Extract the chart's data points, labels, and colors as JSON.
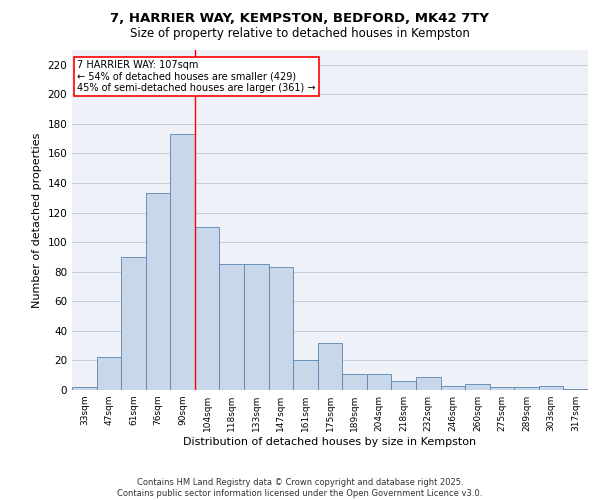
{
  "title1": "7, HARRIER WAY, KEMPSTON, BEDFORD, MK42 7TY",
  "title2": "Size of property relative to detached houses in Kempston",
  "xlabel": "Distribution of detached houses by size in Kempston",
  "ylabel": "Number of detached properties",
  "bar_color": "#c8d8ea",
  "bar_edge_color": "#5a85b0",
  "bg_color": "#eef2f8",
  "categories": [
    "33sqm",
    "47sqm",
    "61sqm",
    "76sqm",
    "90sqm",
    "104sqm",
    "118sqm",
    "133sqm",
    "147sqm",
    "161sqm",
    "175sqm",
    "189sqm",
    "204sqm",
    "218sqm",
    "232sqm",
    "246sqm",
    "260sqm",
    "275sqm",
    "289sqm",
    "303sqm",
    "317sqm"
  ],
  "values": [
    2,
    22,
    90,
    133,
    173,
    110,
    85,
    85,
    83,
    20,
    32,
    11,
    11,
    6,
    9,
    3,
    4,
    2,
    2,
    3,
    1
  ],
  "ylim": [
    0,
    230
  ],
  "yticks": [
    0,
    20,
    40,
    60,
    80,
    100,
    120,
    140,
    160,
    180,
    200,
    220
  ],
  "property_label": "7 HARRIER WAY: 107sqm",
  "annotation_line1": "← 54% of detached houses are smaller (429)",
  "annotation_line2": "45% of semi-detached houses are larger (361) →",
  "vline_x_index": 5,
  "footer1": "Contains HM Land Registry data © Crown copyright and database right 2025.",
  "footer2": "Contains public sector information licensed under the Open Government Licence v3.0.",
  "grid_color": "#c0c8d8"
}
